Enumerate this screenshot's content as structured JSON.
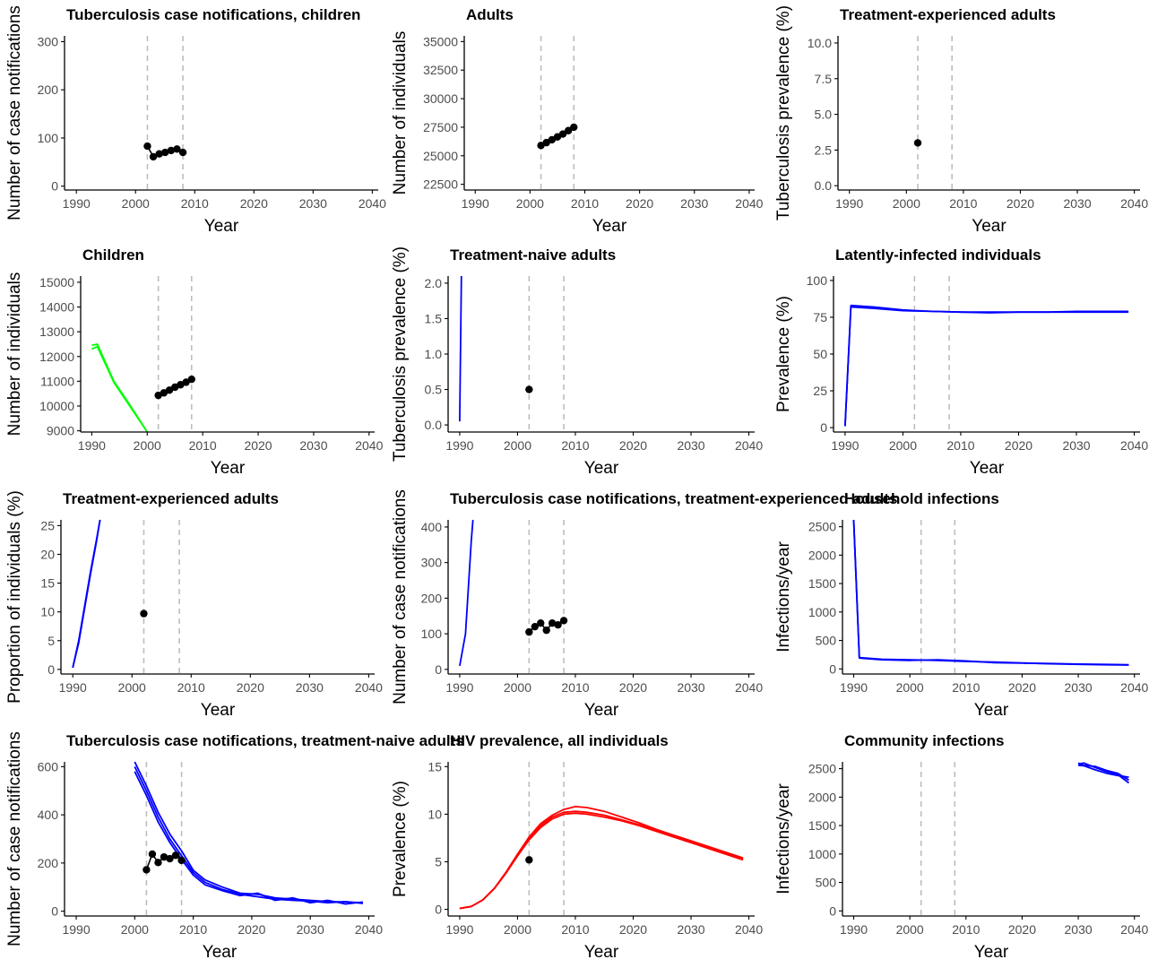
{
  "colors": {
    "observed": "#000000",
    "model_blue": "#0000ff",
    "model_green": "#00ff00",
    "model_red": "#ff0000",
    "reference_line": "#bdbdbd",
    "axis": "#000000",
    "tick_text": "#4d4d4d"
  },
  "chart_data": [
    {
      "type": "line",
      "title": "Tuberculosis case notifications, children",
      "xlabel": "Year",
      "ylabel": "Number of case notifications",
      "xlim": [
        1988,
        2041
      ],
      "ylim": [
        -8,
        312
      ],
      "xticks": [
        1990,
        2000,
        2010,
        2020,
        2030,
        2040
      ],
      "yticks": [
        0,
        100,
        200,
        300
      ],
      "ytick_labels": [
        "0",
        "100",
        "200",
        "300"
      ],
      "reference_lines_x": [
        2002,
        2008
      ],
      "grid": false,
      "observed": {
        "x": [
          2002,
          2003,
          2004,
          2005,
          2006,
          2007,
          2008
        ],
        "y": [
          83,
          61,
          67,
          70,
          74,
          77,
          70
        ]
      },
      "series": []
    },
    {
      "type": "line",
      "title": "Adults",
      "xlabel": "Year",
      "ylabel": "Number of individuals",
      "xlim": [
        1988,
        2041
      ],
      "ylim": [
        22000,
        35500
      ],
      "xticks": [
        1990,
        2000,
        2010,
        2020,
        2030,
        2040
      ],
      "yticks": [
        22500,
        25000,
        27500,
        30000,
        32500,
        35000
      ],
      "ytick_labels": [
        "22500",
        "25000",
        "27500",
        "30000",
        "32500",
        "35000"
      ],
      "reference_lines_x": [
        2002,
        2008
      ],
      "grid": false,
      "observed": {
        "x": [
          2002,
          2003,
          2004,
          2005,
          2006,
          2007,
          2008
        ],
        "y": [
          25900,
          26150,
          26400,
          26650,
          26900,
          27200,
          27500
        ]
      },
      "series": []
    },
    {
      "type": "line",
      "title": "Treatment-experienced adults",
      "xlabel": "Year",
      "ylabel": "Tuberculosis prevalence (%)",
      "xlim": [
        1988,
        2041
      ],
      "ylim": [
        -0.3,
        10.5
      ],
      "xticks": [
        1990,
        2000,
        2010,
        2020,
        2030,
        2040
      ],
      "yticks": [
        0,
        2.5,
        5,
        7.5,
        10
      ],
      "ytick_labels": [
        "0.0",
        "2.5",
        "5.0",
        "7.5",
        "10.0"
      ],
      "reference_lines_x": [
        2002,
        2008
      ],
      "grid": false,
      "observed": {
        "x": [
          2002
        ],
        "y": [
          3.0
        ]
      },
      "series": []
    },
    {
      "type": "line",
      "title": "Children",
      "xlabel": "Year",
      "ylabel": "Number of individuals",
      "xlim": [
        1988,
        2041
      ],
      "ylim": [
        8950,
        15250
      ],
      "xticks": [
        1990,
        2000,
        2010,
        2020,
        2030,
        2040
      ],
      "yticks": [
        9000,
        10000,
        11000,
        12000,
        13000,
        14000,
        15000
      ],
      "ytick_labels": [
        "9000",
        "10000",
        "11000",
        "12000",
        "13000",
        "14000",
        "15000"
      ],
      "reference_lines_x": [
        2002,
        2008
      ],
      "grid": false,
      "observed": {
        "x": [
          2002,
          2003,
          2004,
          2005,
          2006,
          2007,
          2008
        ],
        "y": [
          10430,
          10530,
          10640,
          10760,
          10860,
          10960,
          11080
        ]
      },
      "series": [
        {
          "color": "#00ff00",
          "x": [
            1990,
            1991,
            1994,
            1997,
            2000
          ],
          "y": [
            12450,
            12500,
            11000,
            10000,
            8950
          ]
        },
        {
          "color": "#00ff00",
          "x": [
            1990,
            1991,
            1994,
            1997,
            2000
          ],
          "y": [
            12300,
            12400,
            10950,
            9950,
            8950
          ]
        }
      ]
    },
    {
      "type": "line",
      "title": "Treatment-naive adults",
      "xlabel": "Year",
      "ylabel": "Tuberculosis prevalence (%)",
      "xlim": [
        1988,
        2041
      ],
      "ylim": [
        -0.1,
        2.1
      ],
      "xticks": [
        1990,
        2000,
        2010,
        2020,
        2030,
        2040
      ],
      "yticks": [
        0,
        0.5,
        1,
        1.5,
        2
      ],
      "ytick_labels": [
        "0.0",
        "0.5",
        "1.0",
        "1.5",
        "2.0"
      ],
      "reference_lines_x": [
        2002,
        2008
      ],
      "grid": false,
      "observed": {
        "x": [
          2002
        ],
        "y": [
          0.5
        ]
      },
      "series": [
        {
          "color": "#0000ff",
          "x": [
            1990,
            1990.3
          ],
          "y": [
            0.05,
            2.1
          ]
        }
      ]
    },
    {
      "type": "line",
      "title": "Latently-infected individuals",
      "xlabel": "Year",
      "ylabel": "Prevalence (%)",
      "xlim": [
        1988,
        2041
      ],
      "ylim": [
        -3,
        103
      ],
      "xticks": [
        1990,
        2000,
        2010,
        2020,
        2030,
        2040
      ],
      "yticks": [
        0,
        25,
        50,
        75,
        100
      ],
      "ytick_labels": [
        "0",
        "25",
        "50",
        "75",
        "100"
      ],
      "reference_lines_x": [
        2002,
        2008
      ],
      "grid": false,
      "observed": {
        "x": [],
        "y": []
      },
      "series": [
        {
          "color": "#0000ff",
          "x": [
            1990,
            1991,
            1995,
            2000,
            2005,
            2010,
            2015,
            2020,
            2025,
            2030,
            2035,
            2039
          ],
          "y": [
            1,
            83,
            82,
            80,
            79,
            78.5,
            78.5,
            78.5,
            78.5,
            78.5,
            78.5,
            78.5
          ]
        },
        {
          "color": "#0000ff",
          "x": [
            1990,
            1991,
            1995,
            2000,
            2005,
            2010,
            2015,
            2020,
            2025,
            2030,
            2035,
            2039
          ],
          "y": [
            1,
            82,
            81,
            79.5,
            79,
            78.5,
            78,
            78.5,
            78.5,
            79,
            79,
            79
          ]
        }
      ]
    },
    {
      "type": "line",
      "title": "Treatment-experienced adults",
      "xlabel": "Year",
      "ylabel": "Proportion of individuals (%)",
      "xlim": [
        1988,
        2041
      ],
      "ylim": [
        -0.8,
        26
      ],
      "xticks": [
        1990,
        2000,
        2010,
        2020,
        2030,
        2040
      ],
      "yticks": [
        0,
        5,
        10,
        15,
        20,
        25
      ],
      "ytick_labels": [
        "0",
        "5",
        "10",
        "15",
        "20",
        "25"
      ],
      "reference_lines_x": [
        2002,
        2008
      ],
      "grid": false,
      "observed": {
        "x": [
          2002
        ],
        "y": [
          9.7
        ]
      },
      "series": [
        {
          "color": "#0000ff",
          "x": [
            1990,
            1991,
            1992,
            1993,
            1994,
            1994.6
          ],
          "y": [
            0.3,
            5,
            11,
            17,
            22.5,
            26
          ]
        },
        {
          "color": "#0000ff",
          "x": [
            1990,
            1991,
            1992,
            1993,
            1994,
            1994.6
          ],
          "y": [
            0.3,
            4.6,
            10.6,
            16.6,
            22.2,
            26
          ]
        }
      ]
    },
    {
      "type": "line",
      "title": "Tuberculosis case notifications, treatment-experienced adults",
      "xlabel": "Year",
      "ylabel": "Number of case notifications",
      "xlim": [
        1988,
        2041
      ],
      "ylim": [
        -13,
        420
      ],
      "xticks": [
        1990,
        2000,
        2010,
        2020,
        2030,
        2040
      ],
      "yticks": [
        0,
        100,
        200,
        300,
        400
      ],
      "ytick_labels": [
        "0",
        "100",
        "200",
        "300",
        "400"
      ],
      "reference_lines_x": [
        2002,
        2008
      ],
      "grid": false,
      "observed": {
        "x": [
          2002,
          2003,
          2004,
          2005,
          2006,
          2007,
          2008
        ],
        "y": [
          105,
          120,
          130,
          110,
          130,
          125,
          137
        ]
      },
      "series": [
        {
          "color": "#0000ff",
          "x": [
            1990,
            1991,
            1992,
            1992.3
          ],
          "y": [
            10,
            100,
            360,
            420
          ]
        }
      ]
    },
    {
      "type": "line",
      "title": "Household infections",
      "xlabel": "Year",
      "ylabel": "Infections/year",
      "xlim": [
        1988,
        2041
      ],
      "ylim": [
        -90,
        2620
      ],
      "xticks": [
        1990,
        2000,
        2010,
        2020,
        2030,
        2040
      ],
      "yticks": [
        0,
        500,
        1000,
        1500,
        2000,
        2500
      ],
      "ytick_labels": [
        "0",
        "500",
        "1000",
        "1500",
        "2000",
        "2500"
      ],
      "reference_lines_x": [
        2002,
        2008
      ],
      "grid": false,
      "observed": {
        "x": [],
        "y": []
      },
      "series": [
        {
          "color": "#0000ff",
          "x": [
            1990,
            1991,
            1995,
            2000,
            2005,
            2010,
            2015,
            2020,
            2025,
            2030,
            2035,
            2039
          ],
          "y": [
            2620,
            200,
            170,
            160,
            150,
            130,
            120,
            105,
            90,
            80,
            72,
            68
          ]
        },
        {
          "color": "#0000ff",
          "x": [
            1990,
            1991,
            1995,
            2000,
            2005,
            2010,
            2015,
            2020,
            2025,
            2030,
            2035,
            2039
          ],
          "y": [
            2620,
            190,
            160,
            150,
            160,
            140,
            110,
            100,
            95,
            85,
            78,
            72
          ]
        }
      ]
    },
    {
      "type": "line",
      "title": "Tuberculosis case notifications, treatment-naive adults",
      "xlabel": "Year",
      "ylabel": "Number of case notifications",
      "xlim": [
        1988,
        2041
      ],
      "ylim": [
        -20,
        620
      ],
      "xticks": [
        1990,
        2000,
        2010,
        2020,
        2030,
        2040
      ],
      "yticks": [
        0,
        200,
        400,
        600
      ],
      "ytick_labels": [
        "0",
        "200",
        "400",
        "600"
      ],
      "reference_lines_x": [
        2002,
        2008
      ],
      "grid": false,
      "observed": {
        "x": [
          2002,
          2003,
          2004,
          2005,
          2006,
          2007,
          2008
        ],
        "y": [
          172,
          237,
          202,
          225,
          218,
          232,
          211
        ]
      },
      "series": [
        {
          "color": "#0000ff",
          "x": [
            2000,
            2002,
            2004,
            2006,
            2008,
            2010,
            2012,
            2015,
            2018,
            2021,
            2024,
            2027,
            2030,
            2033,
            2036,
            2039
          ],
          "y": [
            620,
            520,
            410,
            320,
            250,
            170,
            130,
            100,
            75,
            70,
            55,
            50,
            45,
            40,
            38,
            35
          ]
        },
        {
          "color": "#0000ff",
          "x": [
            2000,
            2002,
            2004,
            2006,
            2008,
            2010,
            2012,
            2015,
            2018,
            2021,
            2024,
            2027,
            2030,
            2033,
            2036,
            2039
          ],
          "y": [
            600,
            500,
            390,
            300,
            230,
            160,
            120,
            90,
            70,
            60,
            50,
            45,
            42,
            35,
            40,
            32
          ]
        },
        {
          "color": "#0000ff",
          "x": [
            2000,
            2002,
            2004,
            2006,
            2008,
            2010,
            2012,
            2015,
            2018,
            2021,
            2024,
            2027,
            2030,
            2033,
            2036,
            2039
          ],
          "y": [
            580,
            480,
            370,
            285,
            215,
            150,
            110,
            85,
            65,
            75,
            45,
            55,
            35,
            45,
            30,
            38
          ]
        }
      ]
    },
    {
      "type": "line",
      "title": "HIV prevalence, all individuals",
      "xlabel": "Year",
      "ylabel": "Prevalence (%)",
      "xlim": [
        1988,
        2041
      ],
      "ylim": [
        -0.7,
        15.5
      ],
      "xticks": [
        1990,
        2000,
        2010,
        2020,
        2030,
        2040
      ],
      "yticks": [
        0,
        5,
        10,
        15
      ],
      "ytick_labels": [
        "0",
        "5",
        "10",
        "15"
      ],
      "reference_lines_x": [
        2002,
        2008
      ],
      "grid": false,
      "observed": {
        "x": [
          2002
        ],
        "y": [
          5.2
        ]
      },
      "series": [
        {
          "color": "#ff0000",
          "x": [
            1990,
            1992,
            1994,
            1996,
            1998,
            2000,
            2002,
            2004,
            2006,
            2008,
            2010,
            2012,
            2015,
            2018,
            2021,
            2024,
            2027,
            2030,
            2033,
            2036,
            2039
          ],
          "y": [
            0.1,
            0.3,
            1.0,
            2.2,
            3.8,
            5.6,
            7.3,
            8.6,
            9.5,
            10.0,
            10.1,
            10.0,
            9.7,
            9.3,
            8.8,
            8.2,
            7.6,
            7.0,
            6.4,
            5.8,
            5.2
          ]
        },
        {
          "color": "#ff0000",
          "x": [
            1990,
            1992,
            1994,
            1996,
            1998,
            2000,
            2002,
            2004,
            2006,
            2008,
            2010,
            2012,
            2015,
            2018,
            2021,
            2024,
            2027,
            2030,
            2033,
            2036,
            2039
          ],
          "y": [
            0.1,
            0.3,
            1.0,
            2.2,
            3.9,
            5.8,
            7.6,
            9.0,
            9.9,
            10.5,
            10.8,
            10.7,
            10.3,
            9.7,
            9.1,
            8.4,
            7.8,
            7.2,
            6.6,
            6.0,
            5.4
          ]
        },
        {
          "color": "#ff0000",
          "x": [
            1990,
            1992,
            1994,
            1996,
            1998,
            2000,
            2002,
            2004,
            2006,
            2008,
            2010,
            2012,
            2015,
            2018,
            2021,
            2024,
            2027,
            2030,
            2033,
            2036,
            2039
          ],
          "y": [
            0.1,
            0.3,
            1.0,
            2.2,
            3.8,
            5.7,
            7.5,
            8.8,
            9.7,
            10.2,
            10.3,
            10.2,
            9.9,
            9.4,
            8.9,
            8.3,
            7.7,
            7.1,
            6.5,
            5.9,
            5.3
          ]
        }
      ]
    },
    {
      "type": "line",
      "title": "Community infections",
      "xlabel": "Year",
      "ylabel": "Infections/year",
      "xlim": [
        1988,
        2041
      ],
      "ylim": [
        -90,
        2620
      ],
      "xticks": [
        1990,
        2000,
        2010,
        2020,
        2030,
        2040
      ],
      "yticks": [
        0,
        500,
        1000,
        1500,
        2000,
        2500
      ],
      "ytick_labels": [
        "0",
        "500",
        "1000",
        "1500",
        "2000",
        "2500"
      ],
      "reference_lines_x": [
        2002,
        2008
      ],
      "grid": false,
      "observed": {
        "x": [],
        "y": []
      },
      "series": [
        {
          "color": "#0000ff",
          "x": [
            2030,
            2031,
            2033,
            2035,
            2037,
            2039
          ],
          "y": [
            2600,
            2560,
            2540,
            2470,
            2420,
            2300
          ]
        },
        {
          "color": "#0000ff",
          "x": [
            2030,
            2031,
            2033,
            2035,
            2037,
            2039
          ],
          "y": [
            2580,
            2600,
            2520,
            2450,
            2400,
            2250
          ]
        },
        {
          "color": "#0000ff",
          "x": [
            2030,
            2031,
            2033,
            2035,
            2037,
            2039
          ],
          "y": [
            2560,
            2550,
            2480,
            2420,
            2380,
            2350
          ]
        }
      ]
    }
  ]
}
